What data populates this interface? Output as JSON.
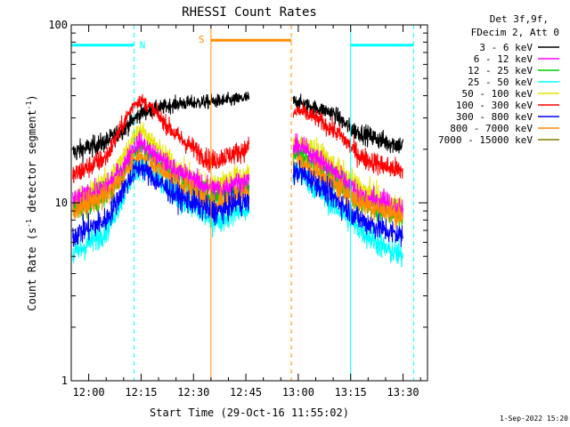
{
  "chart_data": {
    "type": "line",
    "title": "RHESSI Count Rates",
    "xlabel": "Start Time (29-Oct-16 11:55:02)",
    "ylabel_main": "Count Rate (s",
    "ylabel_sup1": "-1",
    "ylabel_mid": " detector segment",
    "ylabel_sup2": "-1",
    "ylabel_end": ")",
    "y_scale": "log",
    "ylim": [
      1,
      100
    ],
    "y_ticks": [
      {
        "value": 1,
        "label": "1"
      },
      {
        "value": 10,
        "label": "10"
      },
      {
        "value": 100,
        "label": "100"
      }
    ],
    "xlim_minutes": [
      -5,
      97
    ],
    "x_ticks": [
      {
        "minute": 0,
        "label": "12:00"
      },
      {
        "minute": 15,
        "label": "12:15"
      },
      {
        "minute": 30,
        "label": "12:30"
      },
      {
        "minute": 45,
        "label": "12:45"
      },
      {
        "minute": 60,
        "label": "13:00"
      },
      {
        "minute": 75,
        "label": "13:15"
      },
      {
        "minute": 90,
        "label": "13:30"
      }
    ],
    "legend_header": [
      "Det 3f,9f,",
      "FDecim 2, Att 0"
    ],
    "legend_position": "right",
    "series": [
      {
        "name": "3 - 6 keV",
        "color": "#000000"
      },
      {
        "name": "6 - 12 keV",
        "color": "#ff00ff"
      },
      {
        "name": "12 - 25 keV",
        "color": "#00cc00"
      },
      {
        "name": "25 - 50 keV",
        "color": "#00ffff"
      },
      {
        "name": "50 - 100 keV",
        "color": "#e6e600"
      },
      {
        "name": "100 - 300 keV",
        "color": "#ff0000"
      },
      {
        "name": "300 - 800 keV",
        "color": "#0000ff"
      },
      {
        "name": "800 - 7000 keV",
        "color": "#ff8c00"
      },
      {
        "name": "7000 - 15000 keV",
        "color": "#808000"
      }
    ],
    "profiles": [
      {
        "series": "3 - 6 keV",
        "points": [
          [
            -5,
            19
          ],
          [
            5,
            22
          ],
          [
            10,
            26
          ],
          [
            15,
            32
          ],
          [
            25,
            36
          ],
          [
            35,
            37
          ],
          [
            42,
            38
          ],
          [
            45,
            39
          ],
          [
            60,
            37
          ],
          [
            63,
            35
          ],
          [
            70,
            32
          ],
          [
            75,
            26
          ],
          [
            85,
            22
          ],
          [
            90,
            21
          ]
        ]
      },
      {
        "series": "100 - 300 keV",
        "points": [
          [
            -5,
            14
          ],
          [
            5,
            18
          ],
          [
            10,
            28
          ],
          [
            13,
            36
          ],
          [
            15,
            38
          ],
          [
            18,
            34
          ],
          [
            25,
            24
          ],
          [
            35,
            17
          ],
          [
            38,
            18
          ],
          [
            42,
            19
          ],
          [
            45,
            20
          ],
          [
            60,
            33
          ],
          [
            65,
            30
          ],
          [
            72,
            24
          ],
          [
            78,
            18
          ],
          [
            85,
            16
          ],
          [
            90,
            15
          ]
        ]
      },
      {
        "series": "50 - 100 keV",
        "points": [
          [
            -5,
            10
          ],
          [
            5,
            13
          ],
          [
            10,
            18
          ],
          [
            13,
            24
          ],
          [
            15,
            26
          ],
          [
            18,
            22
          ],
          [
            25,
            16
          ],
          [
            35,
            12
          ],
          [
            38,
            13
          ],
          [
            42,
            14
          ],
          [
            45,
            14
          ],
          [
            60,
            22
          ],
          [
            65,
            20
          ],
          [
            72,
            15
          ],
          [
            78,
            12
          ],
          [
            85,
            10
          ],
          [
            90,
            9
          ]
        ]
      },
      {
        "series": "12 - 25 keV",
        "points": [
          [
            -5,
            9
          ],
          [
            5,
            11
          ],
          [
            10,
            15
          ],
          [
            13,
            19
          ],
          [
            15,
            21
          ],
          [
            18,
            18
          ],
          [
            25,
            14
          ],
          [
            35,
            11
          ],
          [
            38,
            11
          ],
          [
            42,
            12
          ],
          [
            45,
            12
          ],
          [
            60,
            19
          ],
          [
            65,
            17
          ],
          [
            72,
            13
          ],
          [
            78,
            10
          ],
          [
            85,
            9
          ],
          [
            90,
            8
          ]
        ]
      },
      {
        "series": "6 - 12 keV",
        "points": [
          [
            -5,
            10
          ],
          [
            5,
            12
          ],
          [
            10,
            16
          ],
          [
            13,
            21
          ],
          [
            15,
            22
          ],
          [
            18,
            19
          ],
          [
            25,
            15
          ],
          [
            35,
            12
          ],
          [
            38,
            12
          ],
          [
            42,
            13
          ],
          [
            45,
            13
          ],
          [
            60,
            21
          ],
          [
            65,
            18
          ],
          [
            72,
            14
          ],
          [
            78,
            11
          ],
          [
            85,
            10
          ],
          [
            90,
            9
          ]
        ]
      },
      {
        "series": "800 - 7000 keV",
        "points": [
          [
            -5,
            9
          ],
          [
            5,
            11
          ],
          [
            10,
            14
          ],
          [
            13,
            17
          ],
          [
            15,
            18
          ],
          [
            18,
            16
          ],
          [
            25,
            13
          ],
          [
            35,
            10
          ],
          [
            38,
            10
          ],
          [
            42,
            11
          ],
          [
            45,
            11
          ],
          [
            60,
            17
          ],
          [
            65,
            15
          ],
          [
            72,
            12
          ],
          [
            78,
            10
          ],
          [
            85,
            9
          ],
          [
            90,
            8.5
          ]
        ]
      },
      {
        "series": "25 - 50 keV",
        "points": [
          [
            -5,
            5
          ],
          [
            5,
            7
          ],
          [
            10,
            11
          ],
          [
            13,
            15
          ],
          [
            15,
            16
          ],
          [
            18,
            14
          ],
          [
            25,
            11
          ],
          [
            35,
            8
          ],
          [
            38,
            8
          ],
          [
            42,
            9
          ],
          [
            45,
            9
          ],
          [
            60,
            15
          ],
          [
            65,
            12
          ],
          [
            72,
            9
          ],
          [
            78,
            7
          ],
          [
            85,
            5.5
          ],
          [
            90,
            5
          ]
        ]
      },
      {
        "series": "300 - 800 keV",
        "points": [
          [
            -5,
            6.5
          ],
          [
            5,
            8
          ],
          [
            10,
            12
          ],
          [
            13,
            15
          ],
          [
            15,
            16
          ],
          [
            18,
            14
          ],
          [
            25,
            11
          ],
          [
            35,
            9
          ],
          [
            38,
            9
          ],
          [
            42,
            10
          ],
          [
            45,
            10
          ],
          [
            60,
            15
          ],
          [
            65,
            13
          ],
          [
            72,
            10
          ],
          [
            78,
            8
          ],
          [
            85,
            7
          ],
          [
            90,
            6.5
          ]
        ]
      }
    ],
    "data_gaps_minutes": [
      [
        -5,
        -4.6
      ],
      [
        46,
        58.5
      ]
    ],
    "overlays": {
      "night_label": "N",
      "saa_label": "S",
      "night_color": "#00ffff",
      "saa_color": "#ff8c00",
      "night_bars": [
        [
          -5,
          13
        ],
        [
          75,
          93
        ]
      ],
      "night_bar_value": 77,
      "saa_bar": [
        35,
        58
      ],
      "saa_bar_value": 82,
      "solid_lines": [
        {
          "minute": -5,
          "color": "#00ffff"
        },
        {
          "minute": 35,
          "color": "#ff8c00"
        },
        {
          "minute": 75,
          "color": "#00ffff"
        }
      ],
      "dashed_lines": [
        {
          "minute": 13,
          "color": "#00ffff"
        },
        {
          "minute": 58,
          "color": "#ff8c00"
        },
        {
          "minute": 93,
          "color": "#00ffff"
        }
      ]
    },
    "timestamp": "1-Sep-2022 15:20"
  }
}
